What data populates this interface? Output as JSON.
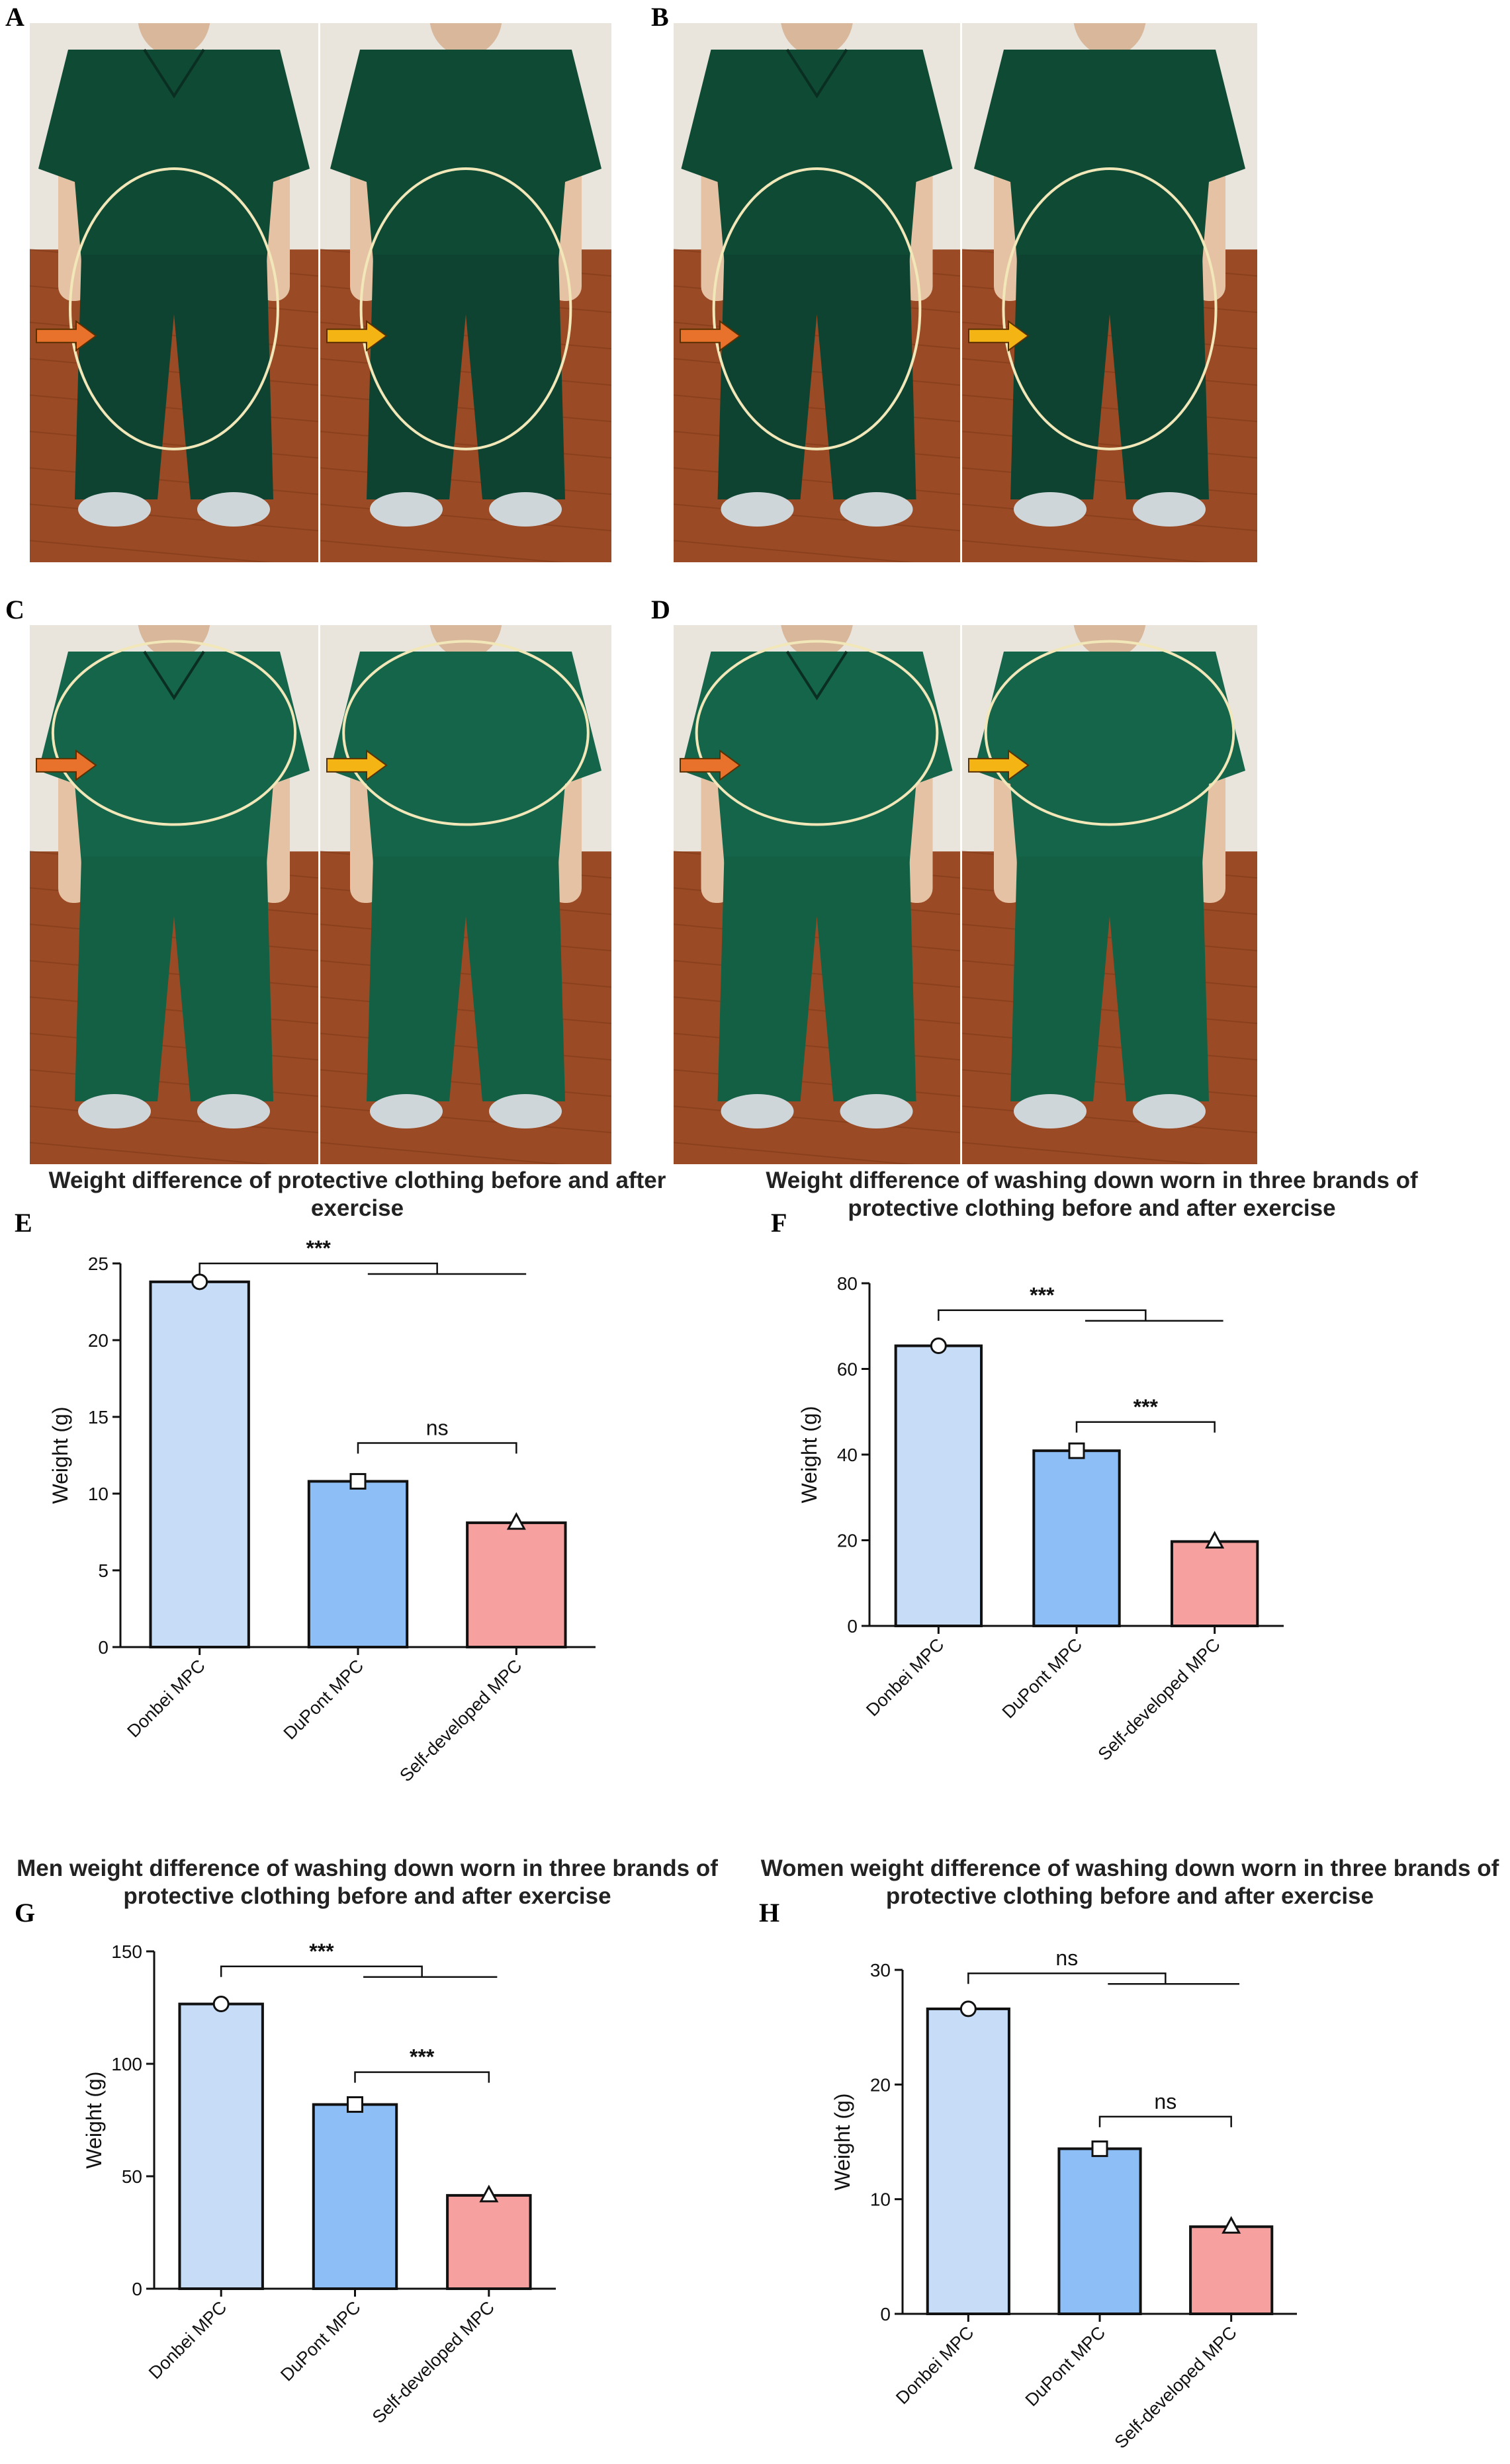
{
  "panels": {
    "A": "A",
    "B": "B",
    "C": "C",
    "D": "D",
    "E": "E",
    "F": "F",
    "G": "G",
    "H": "H"
  },
  "colors": {
    "donbei": "#c6dcf7",
    "dupont": "#8dbef5",
    "self": "#f6a0a0",
    "scrub": "#0f4a34",
    "scrub_light": "#15654a",
    "floor": "#9a4a24",
    "arrow_orange": "#e8722c",
    "arrow_yellow": "#f3b414",
    "ellipse": "#f1e7b8"
  },
  "icons": [
    "orange-arrow-icon",
    "yellow-arrow-icon",
    "highlight-ellipse-icon"
  ],
  "chart_data": [
    {
      "id": "E",
      "type": "bar",
      "title": "Weight difference of protective clothing before and after exercise",
      "ylabel": "Weight (g)",
      "categories": [
        "Donbei MPC",
        "DuPont MPC",
        "Self-developed MPC"
      ],
      "values": [
        23.8,
        10.8,
        8.1
      ],
      "markers": [
        "circle",
        "square",
        "triangle"
      ],
      "ylim": [
        0,
        25
      ],
      "yticks": [
        0,
        5,
        10,
        15,
        20,
        25
      ],
      "significance": [
        {
          "label": "***",
          "from": 0,
          "to": "1-2",
          "level": 25.0
        },
        {
          "label": "ns",
          "from": 1,
          "to": 2,
          "level": 13.3
        }
      ]
    },
    {
      "id": "F",
      "type": "bar",
      "title": "Weight difference of washing down worn in three brands of protective clothing before and after exercise",
      "ylabel": "Weight (g)",
      "categories": [
        "Donbei MPC",
        "DuPont MPC",
        "Self-developed MPC"
      ],
      "values": [
        65.4,
        40.9,
        19.7
      ],
      "markers": [
        "circle",
        "square",
        "triangle"
      ],
      "ylim": [
        0,
        80
      ],
      "yticks": [
        0,
        20,
        40,
        60,
        80
      ],
      "significance": [
        {
          "label": "***",
          "from": 0,
          "to": "1-2",
          "level": 73.7
        },
        {
          "label": "***",
          "from": 1,
          "to": 2,
          "level": 47.6
        }
      ]
    },
    {
      "id": "G",
      "type": "bar",
      "title": "Men weight difference of washing down worn in three brands of protective clothing before and after exercise",
      "ylabel": "Weight (g)",
      "categories": [
        "Donbei MPC",
        "DuPont MPC",
        "Self-developed MPC"
      ],
      "values": [
        126.6,
        81.9,
        41.5
      ],
      "markers": [
        "circle",
        "square",
        "triangle"
      ],
      "ylim": [
        0,
        150
      ],
      "yticks": [
        0,
        50,
        100,
        150
      ],
      "significance": [
        {
          "label": "***",
          "from": 0,
          "to": "1-2",
          "level": 143.3
        },
        {
          "label": "***",
          "from": 1,
          "to": 2,
          "level": 96.3
        }
      ]
    },
    {
      "id": "H",
      "type": "bar",
      "title": "Women weight difference of washing down worn in three brands of protective clothing before and after exercise",
      "ylabel": "Weight (g)",
      "categories": [
        "Donbei MPC",
        "DuPont MPC",
        "Self-developed MPC"
      ],
      "values": [
        26.6,
        14.4,
        7.6
      ],
      "markers": [
        "circle",
        "square",
        "triangle"
      ],
      "ylim": [
        0,
        30
      ],
      "yticks": [
        0,
        10,
        20,
        30
      ],
      "significance": [
        {
          "label": "ns",
          "from": 0,
          "to": "1-2",
          "level": 29.7
        },
        {
          "label": "ns",
          "from": 1,
          "to": 2,
          "level": 17.2
        }
      ]
    }
  ]
}
